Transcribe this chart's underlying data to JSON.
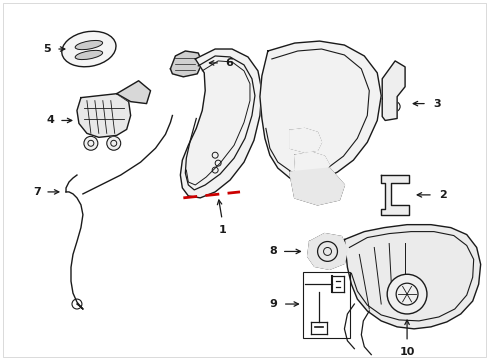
{
  "bg_color": "#ffffff",
  "line_color": "#1a1a1a",
  "red_color": "#cc0000",
  "figsize": [
    4.89,
    3.6
  ],
  "dpi": 100
}
